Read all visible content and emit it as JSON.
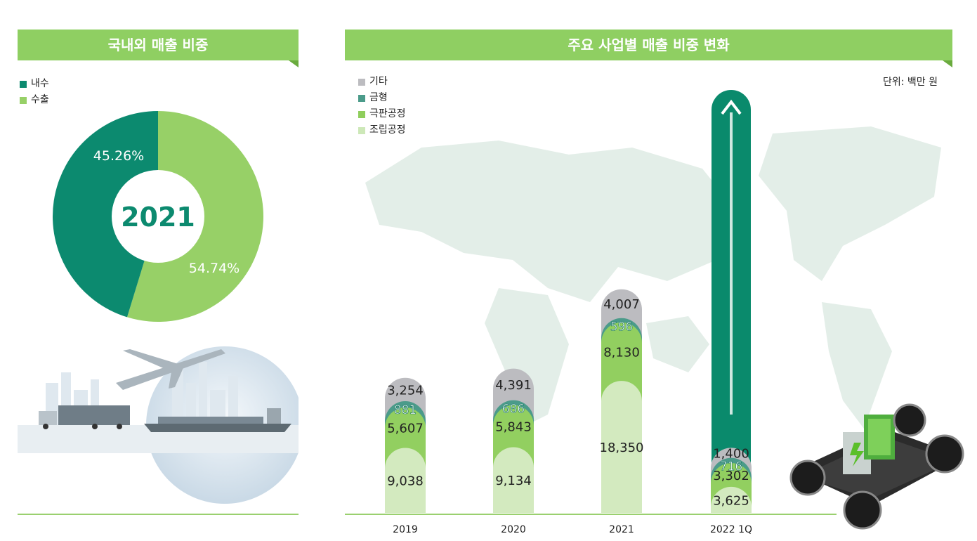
{
  "left_panel": {
    "title": "국내외 매출 비중",
    "legend": [
      {
        "label": "내수",
        "color": "#0c8a6f"
      },
      {
        "label": "수출",
        "color": "#97d067"
      }
    ],
    "center_label": "2021"
  },
  "right_panel": {
    "title": "주요 사업별 매출 비중 변화",
    "unit": "단위: 백만 원",
    "legend": [
      {
        "label": "기타",
        "color": "#bcbcc0"
      },
      {
        "label": "금형",
        "color": "#4b9b8a"
      },
      {
        "label": "극판공정",
        "color": "#8fce5c"
      },
      {
        "label": "조립공정",
        "color": "#cde8b8"
      }
    ]
  },
  "chart_data": [
    {
      "type": "pie",
      "year": "2021",
      "slices": [
        {
          "label": "내수",
          "value": 45.26,
          "text": "45.26%",
          "color": "#0c8a6f"
        },
        {
          "label": "수출",
          "value": 54.74,
          "text": "54.74%",
          "color": "#97d067"
        }
      ]
    },
    {
      "type": "bar",
      "stacked": true,
      "categories": [
        "2019",
        "2020",
        "2021",
        "2022 1Q"
      ],
      "series": [
        {
          "name": "조립공정",
          "values": [
            9038,
            9134,
            18350,
            3625
          ],
          "labels": [
            "9,038",
            "9,134",
            "18,350",
            "3,625"
          ],
          "color": "#d3eabf"
        },
        {
          "name": "극판공정",
          "values": [
            5607,
            5843,
            8130,
            3302
          ],
          "labels": [
            "5,607",
            "5,843",
            "8,130",
            "3,302"
          ],
          "color": "#92cf60"
        },
        {
          "name": "금형",
          "values": [
            881,
            686,
            596,
            716
          ],
          "labels": [
            "881",
            "686",
            "596",
            "716"
          ],
          "color": "#4b9b8a"
        },
        {
          "name": "기타",
          "values": [
            3254,
            4391,
            4007,
            1400
          ],
          "labels": [
            "3,254",
            "4,391",
            "4,007",
            "1,400"
          ],
          "color": "#bcbcc0"
        }
      ],
      "highlight_category": "2022 1Q",
      "highlight_color": "#0a8a6c"
    }
  ]
}
